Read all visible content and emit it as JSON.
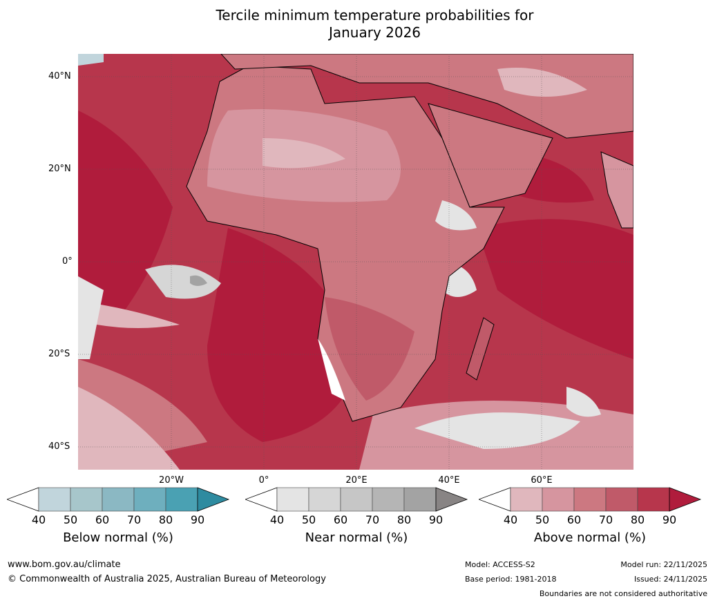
{
  "title_line1": "Tercile minimum temperature probabilities for",
  "title_line2": "January 2026",
  "lat_labels": [
    "40°N",
    "20°N",
    "0°",
    "20°S",
    "40°S"
  ],
  "lon_labels": [
    "20°W",
    "0°",
    "20°E",
    "40°E",
    "60°E"
  ],
  "colorbars": [
    {
      "label": "Below normal (%)",
      "ticks": [
        "40",
        "50",
        "60",
        "70",
        "80",
        "90"
      ],
      "colors": [
        "#ffffff",
        "#c1d5dc",
        "#a7c6cb",
        "#8bb8c3",
        "#6eafbe",
        "#4aa1b3",
        "#2e8ba0"
      ]
    },
    {
      "label": "Near normal (%)",
      "ticks": [
        "40",
        "50",
        "60",
        "70",
        "80",
        "90"
      ],
      "colors": [
        "#ffffff",
        "#e4e4e4",
        "#d6d6d6",
        "#c6c6c6",
        "#b5b5b5",
        "#a3a3a3",
        "#888484"
      ]
    },
    {
      "label": "Above normal (%)",
      "ticks": [
        "40",
        "50",
        "60",
        "70",
        "80",
        "90"
      ],
      "colors": [
        "#ffffff",
        "#e0b7bd",
        "#d6959f",
        "#cc7881",
        "#c05a69",
        "#b7364c",
        "#b01c3c"
      ]
    }
  ],
  "footer": {
    "url": "www.bom.gov.au/climate",
    "copyright": "© Commonwealth of Australia 2025, Australian Bureau of Meteorology",
    "model": "Model: ACCESS-S2",
    "base_period": "Base period: 1981-2018",
    "model_run": "Model run: 22/11/2025",
    "issued": "Issued: 24/11/2025",
    "disclaimer": "Boundaries are not considered authoritative"
  }
}
